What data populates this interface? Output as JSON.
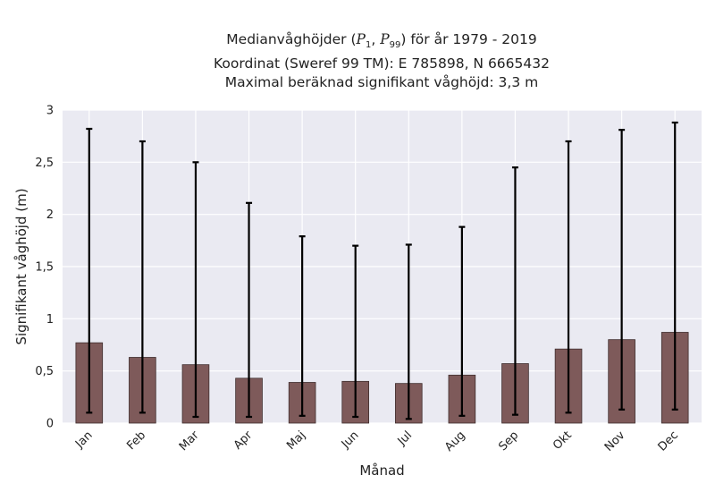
{
  "chart_data": {
    "type": "bar",
    "title_lines": {
      "prefix": "Medianvåghöjder (",
      "p_low": "P",
      "p_low_sub": "1",
      "sep": ", ",
      "p_high": "P",
      "p_high_sub": "99",
      "suffix": ") för år 1979 - 2019",
      "line2": "Koordinat (Sweref 99 TM): E 785898, N 6665432",
      "line3": "Maximal beräknad signifikant våghöjd: 3,3 m"
    },
    "xlabel": "Månad",
    "ylabel": "Signifikant våghöjd (m)",
    "ylim": [
      0,
      3
    ],
    "yticks": [
      0,
      0.5,
      1,
      1.5,
      2,
      2.5,
      3
    ],
    "ytick_labels": [
      "0",
      "0,5",
      "1",
      "1,5",
      "2",
      "2,5",
      "3"
    ],
    "grid": true,
    "categories": [
      "Jan",
      "Feb",
      "Mar",
      "Apr",
      "Maj",
      "Jun",
      "Jul",
      "Aug",
      "Sep",
      "Okt",
      "Nov",
      "Dec"
    ],
    "values": [
      0.77,
      0.63,
      0.56,
      0.43,
      0.39,
      0.4,
      0.38,
      0.46,
      0.57,
      0.71,
      0.8,
      0.87
    ],
    "p1": [
      0.1,
      0.1,
      0.06,
      0.06,
      0.07,
      0.06,
      0.04,
      0.07,
      0.08,
      0.1,
      0.13,
      0.13
    ],
    "p99": [
      2.82,
      2.7,
      2.5,
      2.11,
      1.79,
      1.7,
      1.71,
      1.88,
      2.45,
      2.7,
      2.81,
      2.88
    ],
    "colors": {
      "bar": "#7e5a5a",
      "bar_edge": "#3f2d2d",
      "plot_bg": "#eaeaf2",
      "grid": "#ffffff",
      "errorbar": "#000000"
    }
  }
}
